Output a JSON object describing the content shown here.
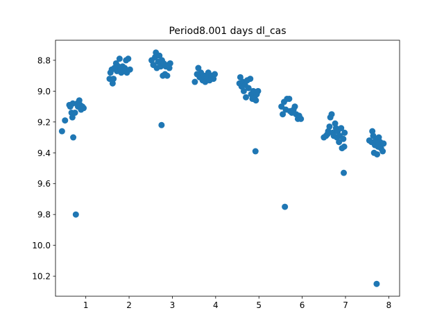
{
  "chart_data": {
    "type": "scatter",
    "title": "Period8.001 days dl_cas",
    "xlabel": "",
    "ylabel": "",
    "xlim": [
      0.3,
      8.25
    ],
    "ylim": [
      8.67,
      10.33
    ],
    "y_inverted": true,
    "grid": false,
    "marker_color": "#1f77b4",
    "xticks": [
      1,
      2,
      3,
      4,
      5,
      6,
      7,
      8
    ],
    "yticks": [
      8.8,
      9.0,
      9.2,
      9.4,
      9.6,
      9.8,
      10.0,
      10.2
    ],
    "ytick_labels": [
      "8.8",
      "9.0",
      "9.2",
      "9.4",
      "9.6",
      "9.8",
      "10.0",
      "10.2"
    ],
    "points": [
      [
        0.45,
        9.26
      ],
      [
        0.52,
        9.19
      ],
      [
        0.62,
        9.09
      ],
      [
        0.64,
        9.1
      ],
      [
        0.67,
        9.14
      ],
      [
        0.69,
        9.17
      ],
      [
        0.7,
        9.08
      ],
      [
        0.71,
        9.3
      ],
      [
        0.75,
        9.14
      ],
      [
        0.8,
        9.08
      ],
      [
        0.82,
        9.1
      ],
      [
        0.85,
        9.06
      ],
      [
        0.87,
        9.09
      ],
      [
        0.89,
        9.12
      ],
      [
        0.92,
        9.1
      ],
      [
        0.95,
        9.11
      ],
      [
        0.77,
        9.8
      ],
      [
        1.55,
        8.92
      ],
      [
        1.57,
        8.88
      ],
      [
        1.6,
        8.86
      ],
      [
        1.62,
        8.95
      ],
      [
        1.64,
        8.92
      ],
      [
        1.66,
        8.85
      ],
      [
        1.7,
        8.82
      ],
      [
        1.72,
        8.87
      ],
      [
        1.75,
        8.84
      ],
      [
        1.78,
        8.79
      ],
      [
        1.8,
        8.86
      ],
      [
        1.82,
        8.88
      ],
      [
        1.85,
        8.84
      ],
      [
        1.88,
        8.87
      ],
      [
        1.9,
        8.85
      ],
      [
        1.93,
        8.8
      ],
      [
        1.95,
        8.88
      ],
      [
        1.98,
        8.79
      ],
      [
        2.02,
        8.86
      ],
      [
        2.52,
        8.8
      ],
      [
        2.56,
        8.83
      ],
      [
        2.6,
        8.78
      ],
      [
        2.62,
        8.75
      ],
      [
        2.64,
        8.85
      ],
      [
        2.67,
        8.81
      ],
      [
        2.7,
        8.77
      ],
      [
        2.73,
        8.84
      ],
      [
        2.76,
        8.8
      ],
      [
        2.78,
        8.9
      ],
      [
        2.8,
        8.82
      ],
      [
        2.83,
        8.89
      ],
      [
        2.85,
        8.84
      ],
      [
        2.88,
        8.9
      ],
      [
        2.9,
        8.83
      ],
      [
        2.93,
        8.85
      ],
      [
        2.95,
        8.82
      ],
      [
        2.75,
        9.22
      ],
      [
        3.52,
        8.94
      ],
      [
        3.57,
        8.89
      ],
      [
        3.6,
        8.85
      ],
      [
        3.63,
        8.91
      ],
      [
        3.66,
        8.88
      ],
      [
        3.7,
        8.93
      ],
      [
        3.73,
        8.9
      ],
      [
        3.76,
        8.94
      ],
      [
        3.8,
        8.91
      ],
      [
        3.83,
        8.88
      ],
      [
        3.86,
        8.93
      ],
      [
        3.9,
        8.9
      ],
      [
        3.95,
        8.92
      ],
      [
        3.98,
        8.89
      ],
      [
        4.55,
        8.95
      ],
      [
        4.57,
        8.91
      ],
      [
        4.6,
        8.97
      ],
      [
        4.63,
        8.94
      ],
      [
        4.65,
        9.0
      ],
      [
        4.68,
        8.96
      ],
      [
        4.7,
        9.04
      ],
      [
        4.73,
        8.93
      ],
      [
        4.76,
        8.98
      ],
      [
        4.8,
        8.92
      ],
      [
        4.82,
        9.02
      ],
      [
        4.85,
        9.05
      ],
      [
        4.87,
        9.0
      ],
      [
        4.9,
        9.04
      ],
      [
        4.93,
        9.06
      ],
      [
        4.95,
        9.02
      ],
      [
        4.98,
        9.0
      ],
      [
        4.92,
        9.39
      ],
      [
        5.52,
        9.1
      ],
      [
        5.55,
        9.15
      ],
      [
        5.58,
        9.07
      ],
      [
        5.62,
        9.12
      ],
      [
        5.65,
        9.05
      ],
      [
        5.7,
        9.05
      ],
      [
        5.72,
        9.13
      ],
      [
        5.76,
        9.14
      ],
      [
        5.8,
        9.12
      ],
      [
        5.83,
        9.1
      ],
      [
        5.86,
        9.15
      ],
      [
        5.9,
        9.18
      ],
      [
        5.93,
        9.16
      ],
      [
        5.97,
        9.18
      ],
      [
        5.6,
        9.75
      ],
      [
        6.5,
        9.3
      ],
      [
        6.55,
        9.29
      ],
      [
        6.58,
        9.28
      ],
      [
        6.6,
        9.26
      ],
      [
        6.63,
        9.23
      ],
      [
        6.65,
        9.17
      ],
      [
        6.68,
        9.15
      ],
      [
        6.7,
        9.27
      ],
      [
        6.73,
        9.29
      ],
      [
        6.76,
        9.21
      ],
      [
        6.78,
        9.24
      ],
      [
        6.8,
        9.3
      ],
      [
        6.82,
        9.26
      ],
      [
        6.85,
        9.33
      ],
      [
        6.87,
        9.29
      ],
      [
        6.9,
        9.24
      ],
      [
        6.92,
        9.37
      ],
      [
        6.95,
        9.31
      ],
      [
        6.97,
        9.36
      ],
      [
        6.98,
        9.27
      ],
      [
        6.96,
        9.53
      ],
      [
        7.55,
        9.32
      ],
      [
        7.6,
        9.33
      ],
      [
        7.62,
        9.26
      ],
      [
        7.64,
        9.29
      ],
      [
        7.66,
        9.4
      ],
      [
        7.68,
        9.35
      ],
      [
        7.7,
        9.32
      ],
      [
        7.73,
        9.41
      ],
      [
        7.75,
        9.36
      ],
      [
        7.77,
        9.3
      ],
      [
        7.8,
        9.33
      ],
      [
        7.82,
        9.37
      ],
      [
        7.84,
        9.34
      ],
      [
        7.86,
        9.39
      ],
      [
        7.88,
        9.34
      ],
      [
        7.72,
        10.25
      ]
    ]
  }
}
